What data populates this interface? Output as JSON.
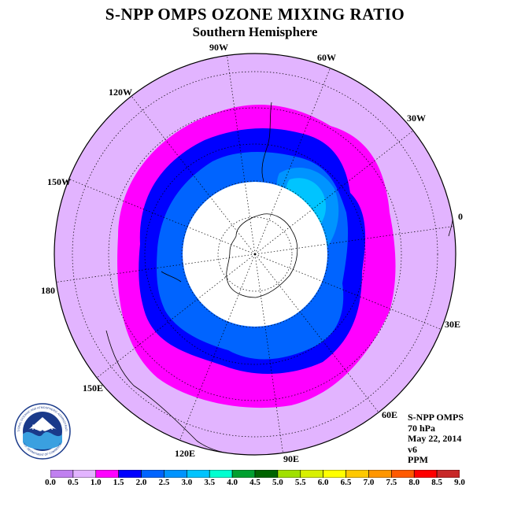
{
  "title": "S-NPP OMPS OZONE MIXING RATIO",
  "subtitle": "Southern Hemisphere",
  "longitude_labels": [
    "90W",
    "60W",
    "30W",
    "0",
    "30E",
    "60E",
    "90E",
    "120E",
    "150E",
    "180",
    "150W",
    "120W"
  ],
  "info": {
    "instrument": "S-NPP OMPS",
    "level": "70 hPa",
    "date": "May 22, 2014",
    "version": "v6",
    "units": "PPM"
  },
  "logo": {
    "text": "NOAA",
    "ring_text": "NATIONAL OCEANIC AND ATMOSPHERIC ADMINISTRATION",
    "ring_text_bottom": "U.S. DEPARTMENT OF COMMERCE"
  },
  "colorbar": {
    "ticks": [
      "0.0",
      "0.5",
      "1.0",
      "1.5",
      "2.0",
      "2.5",
      "3.0",
      "3.5",
      "4.0",
      "4.5",
      "5.0",
      "5.5",
      "6.0",
      "6.5",
      "7.0",
      "7.5",
      "8.0",
      "8.5",
      "9.0"
    ],
    "colors": [
      "#c080f0",
      "#e2b4ff",
      "#ff00ff",
      "#0000ff",
      "#0064ff",
      "#0094ff",
      "#00c4ff",
      "#00ffd0",
      "#00a030",
      "#006400",
      "#a0e000",
      "#d8f000",
      "#ffff00",
      "#ffc800",
      "#ff9600",
      "#ff5a00",
      "#ff0000",
      "#c82828",
      "#8b5a2b"
    ]
  },
  "colors": {
    "background_disk": "#e2b4ff",
    "missing_cap": "#ffffff",
    "coastline": "#000000"
  }
}
